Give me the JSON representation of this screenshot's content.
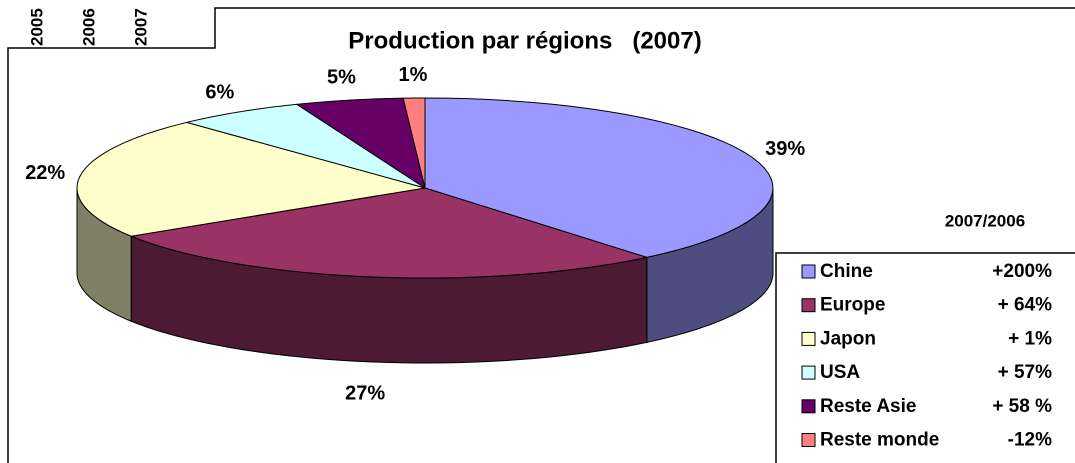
{
  "chart_data": {
    "type": "pie3d",
    "title": "Production par régions   (2007)",
    "categories": [
      "Chine",
      "Europe",
      "Japon",
      "USA",
      "Reste Asie",
      "Reste monde"
    ],
    "values": [
      39,
      27,
      22,
      6,
      5,
      1
    ],
    "value_labels": [
      "39%",
      "27%",
      "22%",
      "6%",
      "5%",
      "1%"
    ],
    "colors": [
      "#9999ff",
      "#993366",
      "#ffffcc",
      "#ccffff",
      "#660066",
      "#ff8080"
    ],
    "legend_header": "2007/2006",
    "legend_changes": [
      "+200%",
      "+ 64%",
      "+ 1%",
      "+ 57%",
      "+ 58 %",
      "-12%"
    ],
    "legend": "right",
    "cropped_labels": [
      "2005",
      "2006",
      "2007"
    ]
  }
}
